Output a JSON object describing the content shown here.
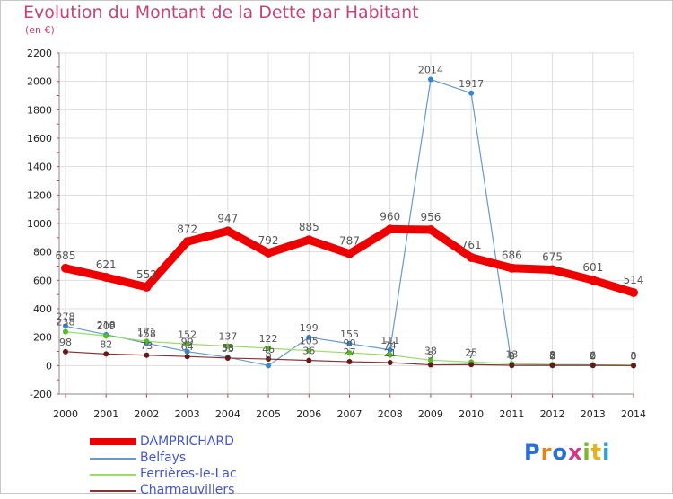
{
  "title": "Evolution du Montant de la Dette par Habitant",
  "subtitle": "(en €)",
  "brand": "Proxiti",
  "colors": {
    "title": "#c2457a",
    "legend_text": "#4455cc",
    "grid": "#dddddd",
    "axis": "#888888",
    "tick_marks": "#d04040"
  },
  "chart_data": {
    "type": "line",
    "x": [
      "2000",
      "2001",
      "2002",
      "2003",
      "2004",
      "2005",
      "2006",
      "2007",
      "2008",
      "2009",
      "2010",
      "2011",
      "2012",
      "2013",
      "2014"
    ],
    "ylim": [
      -200,
      2200
    ],
    "yticks": [
      -200,
      0,
      200,
      400,
      600,
      800,
      1000,
      1200,
      1400,
      1600,
      1800,
      2000,
      2200
    ],
    "grid": true,
    "legend_position": "bottom-left",
    "series": [
      {
        "name": "DAMPRICHARD",
        "color": "#ee0000",
        "width": 9,
        "marker": "#ee0000",
        "labels": true,
        "values": [
          685,
          621,
          552,
          872,
          947,
          792,
          885,
          787,
          960,
          956,
          761,
          686,
          675,
          601,
          514
        ]
      },
      {
        "name": "Belfays",
        "color": "#6699cc",
        "width": 1.2,
        "marker": "#3388cc",
        "labels": true,
        "values": [
          278,
          218,
          158,
          99,
          58,
          0,
          199,
          155,
          111,
          2014,
          1917,
          0,
          0,
          0,
          0
        ]
      },
      {
        "name": "Ferrières-le-Lac",
        "color": "#99dd66",
        "width": 1.2,
        "marker": "#55bb22",
        "labels": true,
        "values": [
          238,
          209,
          171,
          152,
          137,
          122,
          105,
          90,
          74,
          38,
          25,
          13,
          8,
          6,
          3
        ]
      },
      {
        "name": "Charmauvillers",
        "color": "#883333",
        "width": 1.2,
        "marker": "#661818",
        "labels": true,
        "values": [
          98,
          82,
          73,
          64,
          53,
          46,
          36,
          27,
          21,
          5,
          7,
          2,
          2,
          2,
          0
        ]
      }
    ]
  }
}
